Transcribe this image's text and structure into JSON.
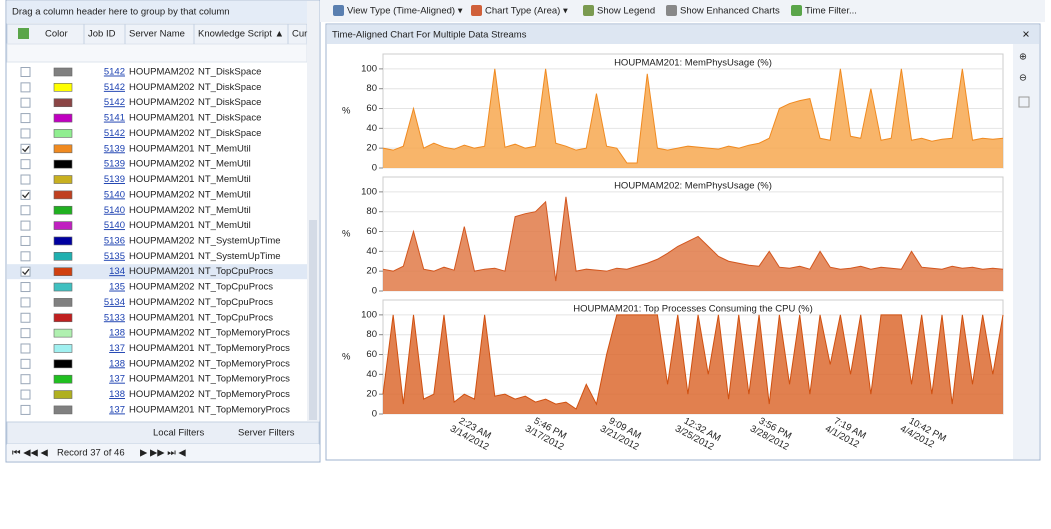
{
  "grid": {
    "group_hint": "Drag a column header here to group by that column",
    "columns": [
      "Color",
      "Job ID",
      "Server Name",
      "Knowledge Script ▲",
      "Cur"
    ],
    "rows": [
      {
        "checked": false,
        "color": "#808080",
        "job_id": "5142",
        "server": "HOUPMAM202",
        "script": "NT_DiskSpace"
      },
      {
        "checked": false,
        "color": "#ffff00",
        "job_id": "5142",
        "server": "HOUPMAM202",
        "script": "NT_DiskSpace"
      },
      {
        "checked": false,
        "color": "#8b4545",
        "job_id": "5142",
        "server": "HOUPMAM202",
        "script": "NT_DiskSpace"
      },
      {
        "checked": false,
        "color": "#c000c0",
        "job_id": "5141",
        "server": "HOUPMAM201",
        "script": "NT_DiskSpace"
      },
      {
        "checked": false,
        "color": "#90ee90",
        "job_id": "5142",
        "server": "HOUPMAM202",
        "script": "NT_DiskSpace"
      },
      {
        "checked": true,
        "color": "#f08a20",
        "job_id": "5139",
        "server": "HOUPMAM201",
        "script": "NT_MemUtil"
      },
      {
        "checked": false,
        "color": "#000000",
        "job_id": "5139",
        "server": "HOUPMAM202",
        "script": "NT_MemUtil"
      },
      {
        "checked": false,
        "color": "#c8b020",
        "job_id": "5139",
        "server": "HOUPMAM201",
        "script": "NT_MemUtil"
      },
      {
        "checked": true,
        "color": "#c04020",
        "job_id": "5140",
        "server": "HOUPMAM202",
        "script": "NT_MemUtil"
      },
      {
        "checked": false,
        "color": "#20b020",
        "job_id": "5140",
        "server": "HOUPMAM202",
        "script": "NT_MemUtil"
      },
      {
        "checked": false,
        "color": "#c020c0",
        "job_id": "5140",
        "server": "HOUPMAM201",
        "script": "NT_MemUtil"
      },
      {
        "checked": false,
        "color": "#0000a0",
        "job_id": "5136",
        "server": "HOUPMAM202",
        "script": "NT_SystemUpTime"
      },
      {
        "checked": false,
        "color": "#20b0b0",
        "job_id": "5135",
        "server": "HOUPMAM201",
        "script": "NT_SystemUpTime"
      },
      {
        "checked": true,
        "color": "#d04010",
        "job_id": "134",
        "server": "HOUPMAM201",
        "script": "NT_TopCpuProcs"
      },
      {
        "checked": false,
        "color": "#40c0c0",
        "job_id": "135",
        "server": "HOUPMAM202",
        "script": "NT_TopCpuProcs"
      },
      {
        "checked": false,
        "color": "#808080",
        "job_id": "5134",
        "server": "HOUPMAM202",
        "script": "NT_TopCpuProcs"
      },
      {
        "checked": false,
        "color": "#c02020",
        "job_id": "5133",
        "server": "HOUPMAM201",
        "script": "NT_TopCpuProcs"
      },
      {
        "checked": false,
        "color": "#b0f0b0",
        "job_id": "138",
        "server": "HOUPMAM202",
        "script": "NT_TopMemoryProcs"
      },
      {
        "checked": false,
        "color": "#a0f0f0",
        "job_id": "137",
        "server": "HOUPMAM201",
        "script": "NT_TopMemoryProcs"
      },
      {
        "checked": false,
        "color": "#000000",
        "job_id": "138",
        "server": "HOUPMAM202",
        "script": "NT_TopMemoryProcs"
      },
      {
        "checked": false,
        "color": "#20c020",
        "job_id": "137",
        "server": "HOUPMAM201",
        "script": "NT_TopMemoryProcs"
      },
      {
        "checked": false,
        "color": "#b0b020",
        "job_id": "138",
        "server": "HOUPMAM202",
        "script": "NT_TopMemoryProcs"
      },
      {
        "checked": false,
        "color": "#808080",
        "job_id": "137",
        "server": "HOUPMAM201",
        "script": "NT_TopMemoryProcs"
      }
    ],
    "footer": {
      "local_filters": "Local Filters",
      "server_filters": "Server Filters",
      "record": "Record 37 of 46"
    }
  },
  "toolbar": [
    "View Type (Time-Aligned) ▾",
    "Chart Type (Area) ▾",
    "Show Legend",
    "Show Enhanced Charts",
    "Time Filter..."
  ],
  "panel_title": "Time-Aligned Chart For Multiple Data Streams",
  "xtick_labels": [
    {
      "time": "2:23 AM",
      "date": "3/14/2012"
    },
    {
      "time": "5:46 PM",
      "date": "3/17/2012"
    },
    {
      "time": "9:09 AM",
      "date": "3/21/2012"
    },
    {
      "time": "12:32 AM",
      "date": "3/25/2012"
    },
    {
      "time": "3:56 PM",
      "date": "3/28/2012"
    },
    {
      "time": "7:19 AM",
      "date": "4/1/2012"
    },
    {
      "time": "10:42 PM",
      "date": "4/4/2012"
    }
  ],
  "chart_data": [
    {
      "type": "area",
      "title": "HOUPMAM201: MemPhysUsage (%)",
      "ylabel": "%",
      "color": "#f08a20",
      "fill": "#f7a850",
      "ylim": [
        0,
        115
      ],
      "yticks": [
        0,
        20,
        40,
        60,
        80,
        100
      ],
      "values": [
        20,
        18,
        22,
        60,
        20,
        25,
        21,
        19,
        23,
        20,
        22,
        100,
        21,
        24,
        20,
        22,
        100,
        25,
        22,
        18,
        20,
        75,
        22,
        20,
        5,
        5,
        95,
        20,
        18,
        20,
        22,
        21,
        20,
        19,
        22,
        20,
        23,
        25,
        30,
        60,
        65,
        68,
        70,
        30,
        28,
        100,
        32,
        30,
        80,
        28,
        30,
        100,
        28,
        30,
        27,
        29,
        30,
        100,
        28,
        30,
        29,
        30
      ]
    },
    {
      "type": "area",
      "title": "HOUPMAM202: MemPhysUsage (%)",
      "ylabel": "%",
      "color": "#d2561e",
      "fill": "#e07a48",
      "ylim": [
        0,
        115
      ],
      "yticks": [
        0,
        20,
        40,
        60,
        80,
        100
      ],
      "values": [
        22,
        20,
        25,
        60,
        22,
        20,
        24,
        21,
        65,
        20,
        22,
        23,
        20,
        75,
        78,
        80,
        90,
        10,
        95,
        20,
        22,
        21,
        20,
        23,
        22,
        25,
        28,
        32,
        38,
        45,
        50,
        55,
        45,
        35,
        30,
        28,
        26,
        25,
        40,
        24,
        23,
        25,
        22,
        40,
        24,
        22,
        23,
        25,
        22,
        24,
        23,
        22,
        40,
        24,
        23,
        22,
        25,
        23,
        24,
        22,
        23,
        22
      ]
    },
    {
      "type": "area",
      "title": "HOUPMAM201: Top Processes Consuming the CPU (%)",
      "ylabel": "%",
      "color": "#d05010",
      "fill": "#dc6a30",
      "ylim": [
        0,
        115
      ],
      "yticks": [
        0,
        20,
        40,
        60,
        80,
        100
      ],
      "values": [
        20,
        100,
        10,
        100,
        15,
        20,
        100,
        12,
        20,
        15,
        100,
        18,
        20,
        15,
        18,
        12,
        15,
        10,
        12,
        5,
        30,
        10,
        60,
        100,
        100,
        100,
        100,
        100,
        30,
        100,
        20,
        100,
        40,
        100,
        15,
        100,
        20,
        100,
        10,
        100,
        30,
        100,
        20,
        100,
        50,
        100,
        40,
        100,
        20,
        100,
        100,
        100,
        30,
        100,
        20,
        100,
        10,
        100,
        30,
        100,
        40,
        100
      ]
    }
  ]
}
